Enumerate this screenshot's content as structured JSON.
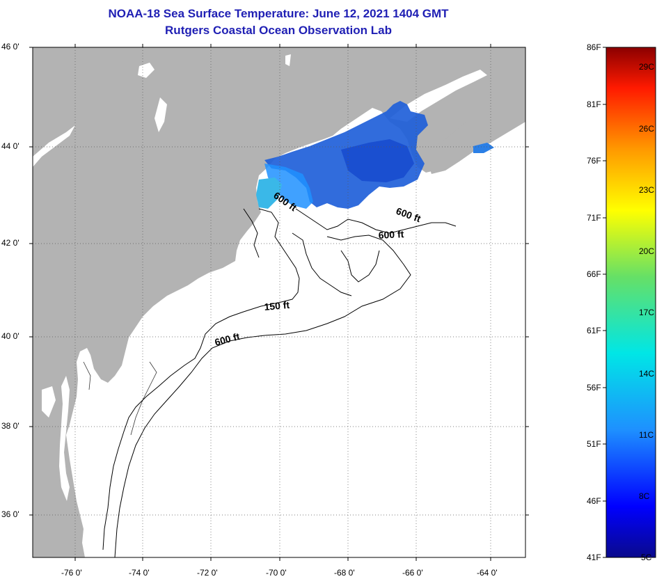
{
  "header": {
    "title": "NOAA-18 Sea Surface Temperature:  June 12, 2021 1404 GMT",
    "subtitle": "Rutgers Coastal Ocean Observation Lab"
  },
  "axes": {
    "lat_labels": [
      "46 0'",
      "44 0'",
      "42 0'",
      "40 0'",
      "38 0'",
      "36 0'"
    ],
    "lon_labels": [
      "-76 0'",
      "-74 0'",
      "-72 0'",
      "-70 0'",
      "-68 0'",
      "-66 0'",
      "-64 0'"
    ]
  },
  "contours": {
    "labels": [
      "600 ft",
      "600 ft",
      "600 ft",
      "150 ft",
      "600 ft"
    ]
  },
  "colorbar": {
    "fahrenheit": [
      "86F",
      "81F",
      "76F",
      "71F",
      "66F",
      "61F",
      "56F",
      "51F",
      "46F",
      "41F"
    ],
    "celsius": [
      "29C",
      "26C",
      "23C",
      "20C",
      "17C",
      "14C",
      "11C",
      "8C",
      "5C"
    ]
  }
}
